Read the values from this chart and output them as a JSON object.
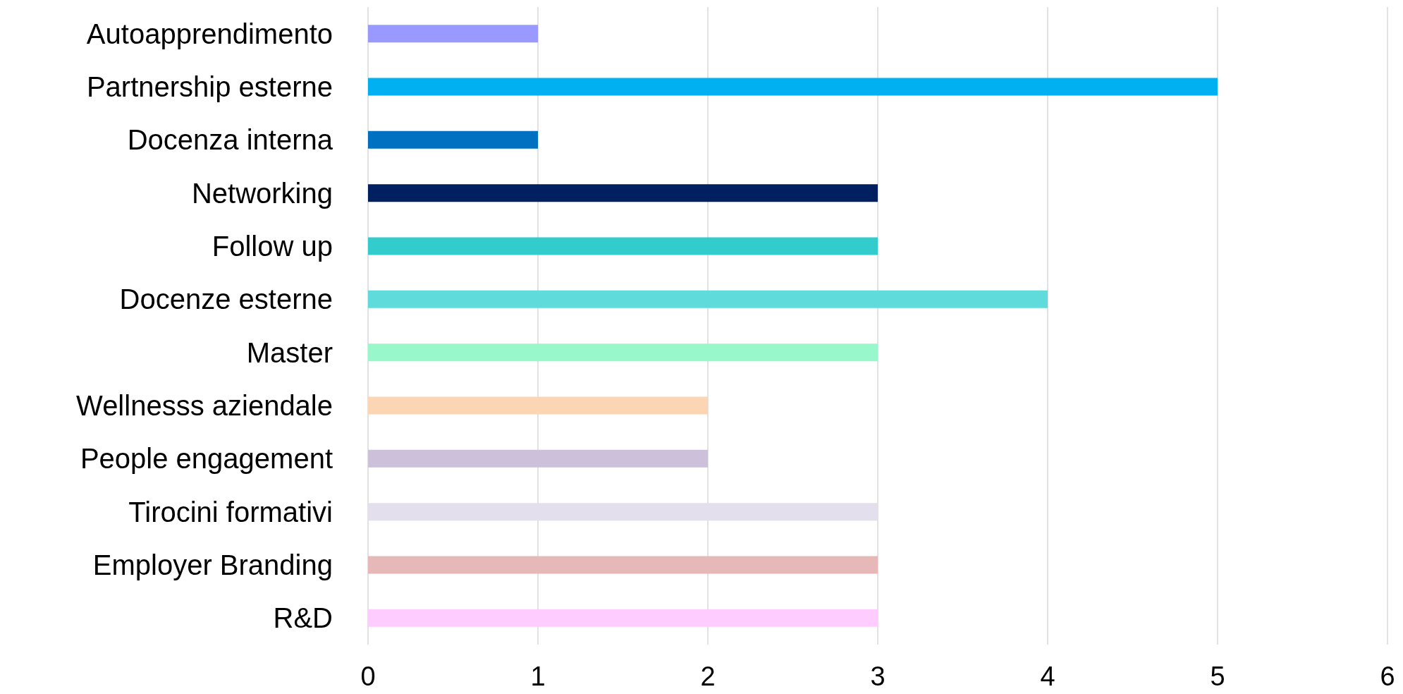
{
  "chart_data": {
    "type": "bar",
    "orientation": "horizontal",
    "categories": [
      "Autoapprendimento",
      "Partnership esterne",
      "Docenza interna",
      "Networking",
      "Follow up",
      "Docenze esterne",
      "Master",
      "Wellnesss aziendale",
      "People engagement",
      "Tirocini formativi",
      "Employer Branding",
      "R&D"
    ],
    "values": [
      1,
      5,
      1,
      3,
      3,
      4,
      3,
      2,
      2,
      3,
      3,
      3
    ],
    "colors": [
      "#9999ff",
      "#00b0f0",
      "#0070c0",
      "#002060",
      "#33cccc",
      "#60dbdb",
      "#99f7cc",
      "#fcd5b4",
      "#ccc0da",
      "#e4dfec",
      "#e6b8b7",
      "#ffccff"
    ],
    "xlim": [
      0,
      6
    ],
    "xticks": [
      0,
      1,
      2,
      3,
      4,
      5,
      6
    ],
    "grid": "x"
  }
}
